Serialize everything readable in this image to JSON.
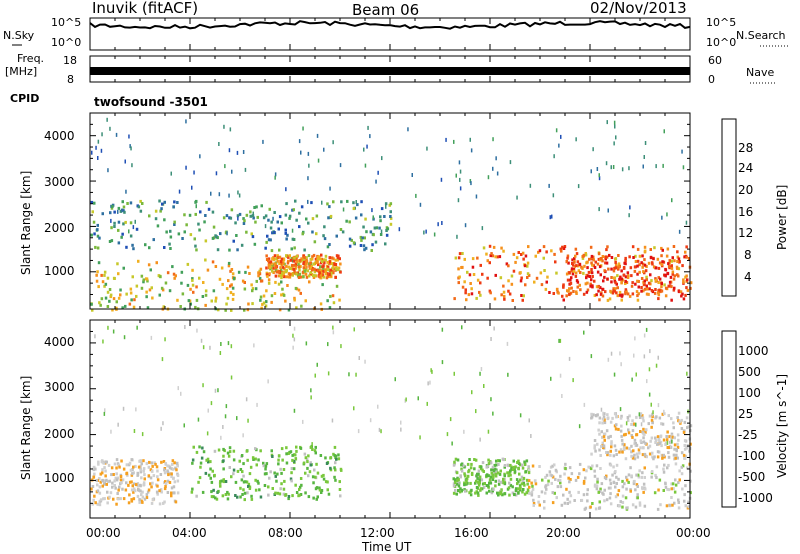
{
  "header": {
    "station": "Inuvik (fitACF)",
    "beam": "Beam 06",
    "date": "02/Nov/2013"
  },
  "nsky_panel": {
    "left_label": "N.Sky",
    "right_label": "N.Search",
    "left_ticks": [
      "10^5",
      "10^0"
    ],
    "right_ticks": [
      "10^5",
      "10^0"
    ]
  },
  "freq_panel": {
    "left_label_1": "Freq.",
    "left_label_2": "[MHz]",
    "right_label": "Nave",
    "left_ticks": [
      "18",
      "8"
    ],
    "right_ticks": [
      "60",
      "0"
    ],
    "cpid_label": "CPID",
    "cpid_value": "twofsound -3501"
  },
  "colors": {
    "power_scale": [
      "#0033ff",
      "#1f4fb5",
      "#2e6fa0",
      "#3d8f78",
      "#42a05a",
      "#7ab83c",
      "#c7c82a",
      "#f0b020",
      "#f5901c",
      "#f26a18",
      "#ee3a12",
      "#e01010"
    ],
    "velocity_scale": [
      "#1a3cc8",
      "#2a60b0",
      "#2f7a70",
      "#3a8a5a",
      "#56b540",
      "#7ac83c",
      "#c0c0c0",
      "#d0d0d0",
      "#f5a020",
      "#f08018",
      "#ee4c12",
      "#e01010"
    ]
  },
  "chart_data": [
    {
      "type": "heatmap",
      "panel": "power",
      "ylabel": "Slant Range [km]",
      "ylim": [
        180,
        4500
      ],
      "yticks": [
        "1000",
        "2000",
        "3000",
        "4000"
      ],
      "colorbar_label": "Power [dB]",
      "colorbar_ticks": [
        "4",
        "8",
        "12",
        "16",
        "20",
        "24",
        "28"
      ],
      "colorbar_range": [
        0,
        32
      ],
      "xlim_hours": [
        0,
        24
      ],
      "features": [
        {
          "t0": 0.0,
          "t1": 10.0,
          "r0": 180,
          "r1": 1300,
          "value": 18
        },
        {
          "t0": 7.0,
          "t1": 10.0,
          "r0": 900,
          "r1": 1400,
          "value": 22
        },
        {
          "t0": 14.5,
          "t1": 24.0,
          "r0": 400,
          "r1": 1600,
          "value": 24
        },
        {
          "t0": 19.0,
          "t1": 24.0,
          "r0": 500,
          "r1": 1400,
          "value": 28
        },
        {
          "t0": 0.0,
          "t1": 12.0,
          "r0": 1500,
          "r1": 2600,
          "value": 10
        }
      ]
    },
    {
      "type": "heatmap",
      "panel": "velocity",
      "ylabel": "Slant Range [km]",
      "ylim": [
        180,
        4500
      ],
      "yticks": [
        "1000",
        "2000",
        "3000",
        "4000"
      ],
      "colorbar_label": "Velocity [m s^-1]",
      "colorbar_ticks": [
        "1000",
        "500",
        "100",
        "25",
        "-25",
        "-100",
        "-500",
        "-1000"
      ],
      "xlim_hours": [
        0,
        24
      ],
      "features": [
        {
          "t0": 0.0,
          "t1": 3.5,
          "r0": 500,
          "r1": 1500,
          "value": -300
        },
        {
          "t0": 4.0,
          "t1": 10.0,
          "r0": 600,
          "r1": 1800,
          "value": 200
        },
        {
          "t0": 14.5,
          "t1": 17.5,
          "r0": 700,
          "r1": 1500,
          "value": 150
        },
        {
          "t0": 17.5,
          "t1": 24.0,
          "r0": 400,
          "r1": 1400,
          "value": -200
        },
        {
          "t0": 20.0,
          "t1": 24.0,
          "r0": 1500,
          "r1": 2500,
          "value": -250
        }
      ]
    }
  ],
  "time_axis": {
    "xlabel": "Time UT",
    "ticks": [
      "00:00",
      "04:00",
      "08:00",
      "12:00",
      "16:00",
      "20:00",
      "00:00"
    ]
  }
}
